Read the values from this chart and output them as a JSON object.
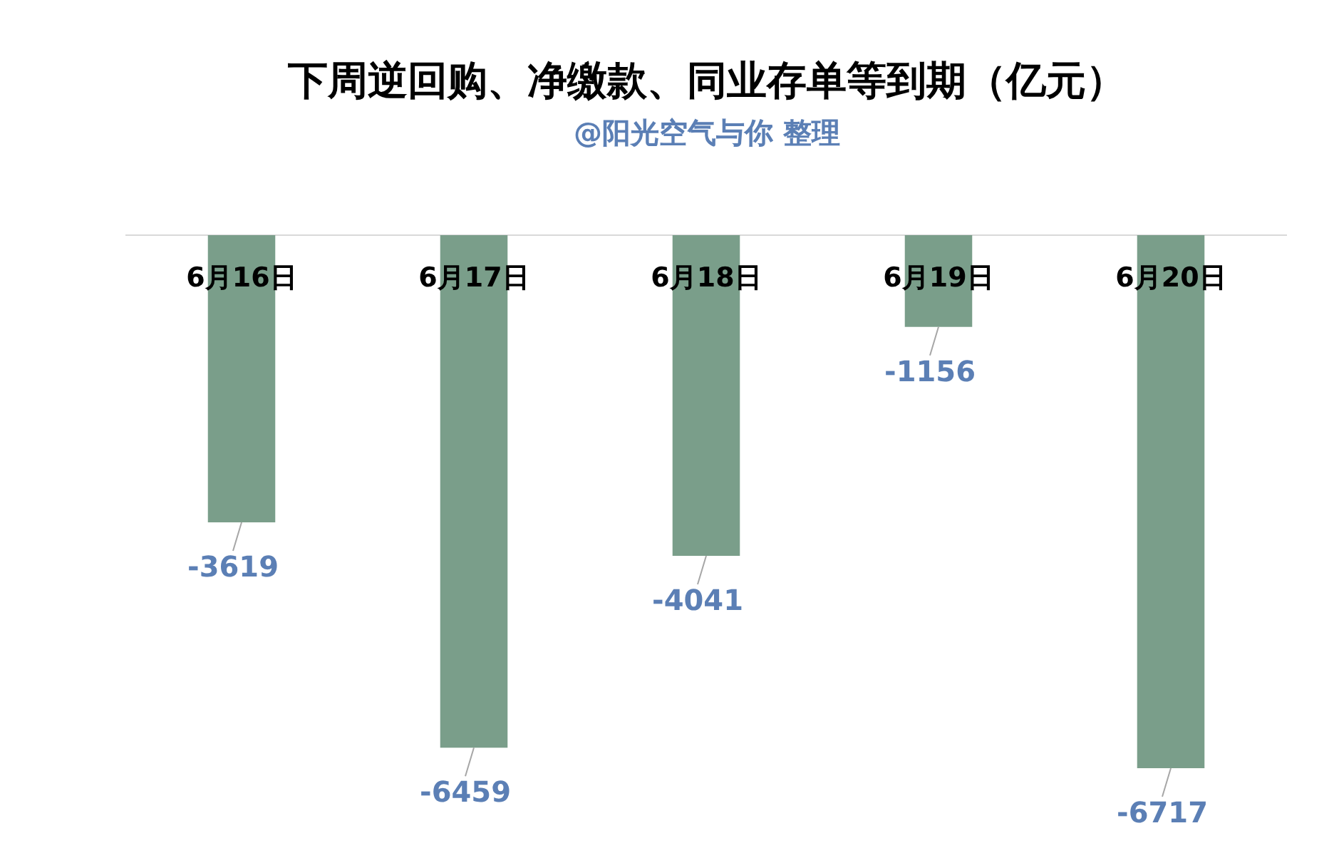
{
  "chart_data": {
    "type": "bar",
    "title": "下周逆回购、净缴款、同业存单等到期（亿元）",
    "subtitle": "@阳光空气与你  整理",
    "categories": [
      "6月16日",
      "6月17日",
      "6月18日",
      "6月19日",
      "6月20日"
    ],
    "values": [
      -3619,
      -6459,
      -4041,
      -1156,
      -6717
    ],
    "color": "#7a9e8a",
    "data_labels": true
  }
}
